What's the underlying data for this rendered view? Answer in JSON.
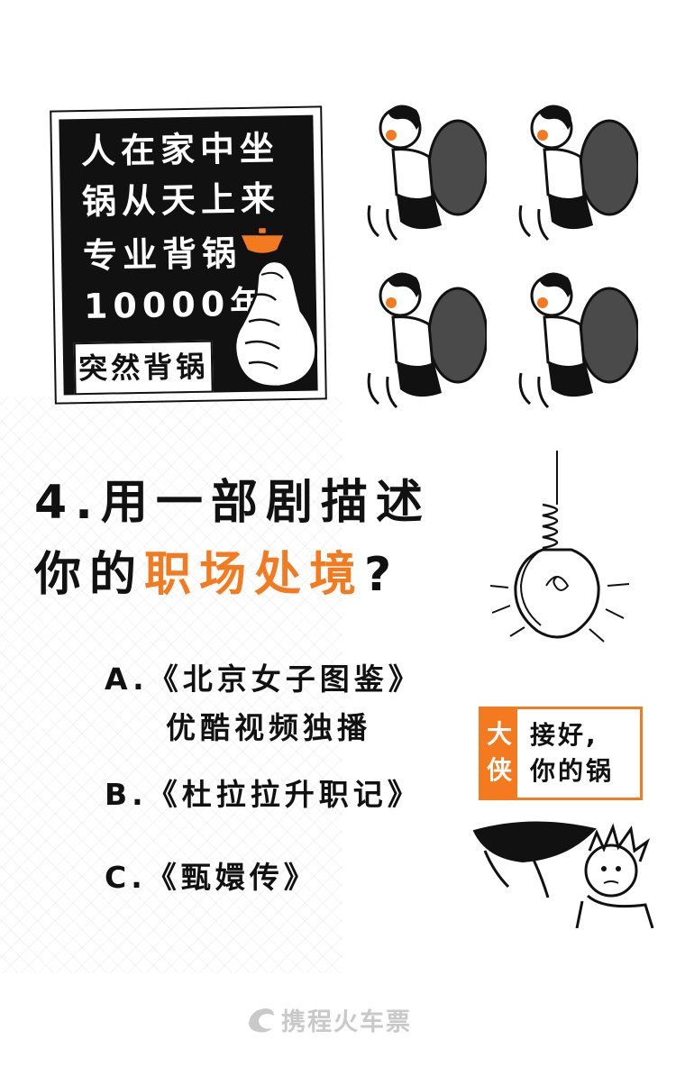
{
  "sign": {
    "lines": [
      "人在家中坐",
      "锅从天上来",
      "专业背锅",
      "10000年"
    ],
    "tag": "突然背锅"
  },
  "question": {
    "line1": "4.用一部剧描述",
    "line2_prefix": "你的",
    "line2_highlight": "职场处境",
    "line2_suffix": "?"
  },
  "options": {
    "a_line1": "A.《北京女子图鉴》",
    "a_line2": "优酷视频独播",
    "b": "B.《杜拉拉升职记》",
    "c": "C.《甄嬛传》"
  },
  "callout": {
    "tag_char1": "大",
    "tag_char2": "侠",
    "line1": "接好,",
    "line2": "你的锅"
  },
  "footer": {
    "brand": "携程火车票"
  },
  "colors": {
    "accent": "#f47a20",
    "ink": "#111111",
    "footer_gray": "#c9c9c9"
  },
  "icons": [
    "pan-icon",
    "finger-heart-hand-icon",
    "wok-carrier-character-icon",
    "hanging-light-bulb-icon",
    "wok-catcher-character-icon",
    "ctrip-dolphin-logo-icon"
  ]
}
